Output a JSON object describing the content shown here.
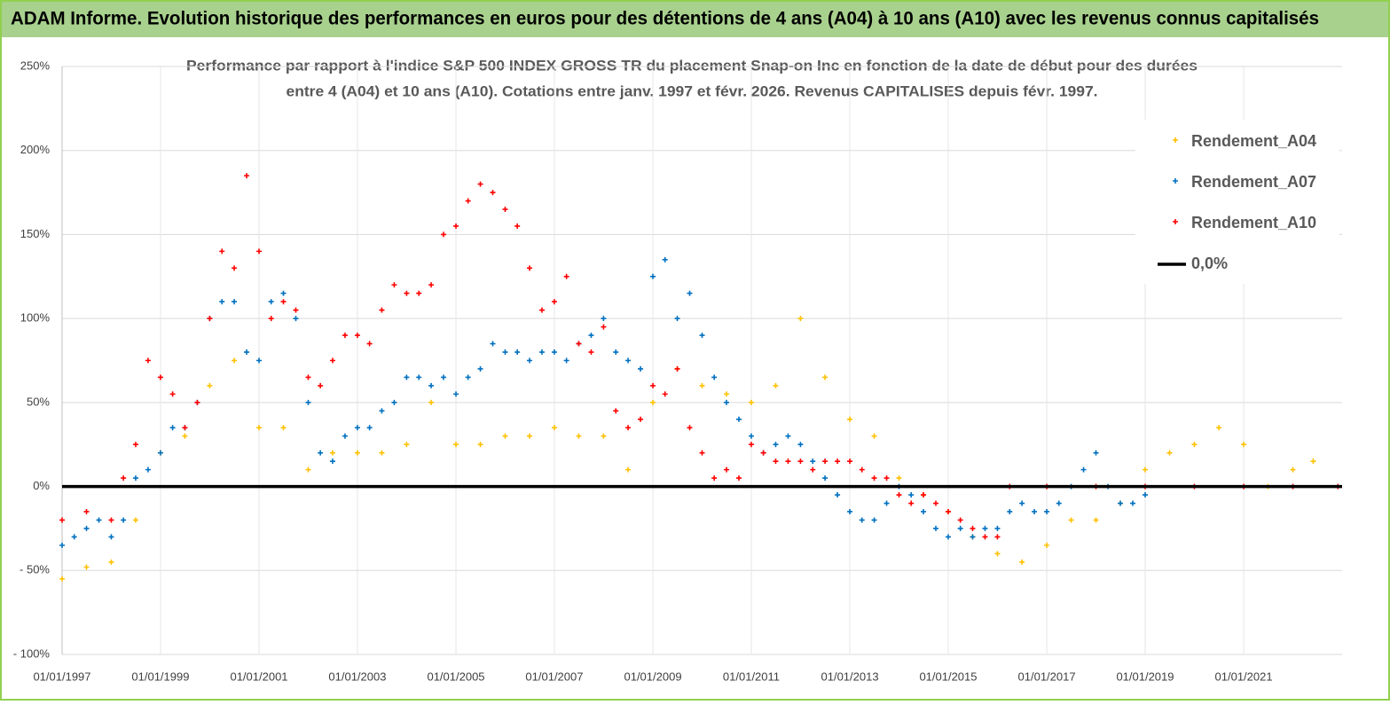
{
  "chart_data": {
    "type": "scatter",
    "title": "ADAM Informe. Evolution historique des performances en euros pour des détentions de 4 ans (A04) à 10 ans (A10) avec les revenus connus capitalisés",
    "subtitle": [
      "Performance par rapport à l'indice S&P 500 INDEX GROSS TR  du placement Snap-on Inc en fonction de la date de début pour des durées",
      "entre 4 (A04) et 10 ans (A10). Cotations entre janv. 1997 et févr. 2026. Revenus CAPITALISES depuis févr. 1997."
    ],
    "xlim": [
      "1997-01-01",
      "2023-01-01"
    ],
    "xticks": [
      {
        "value": "1997-01-01",
        "label": "01/01/1997"
      },
      {
        "value": "1999-01-01",
        "label": "01/01/1999"
      },
      {
        "value": "2001-01-01",
        "label": "01/01/2001"
      },
      {
        "value": "2003-01-01",
        "label": "01/01/2003"
      },
      {
        "value": "2005-01-01",
        "label": "01/01/2005"
      },
      {
        "value": "2007-01-01",
        "label": "01/01/2007"
      },
      {
        "value": "2009-01-01",
        "label": "01/01/2009"
      },
      {
        "value": "2011-01-01",
        "label": "01/01/2011"
      },
      {
        "value": "2013-01-01",
        "label": "01/01/2013"
      },
      {
        "value": "2015-01-01",
        "label": "01/01/2015"
      },
      {
        "value": "2017-01-01",
        "label": "01/01/2017"
      },
      {
        "value": "2019-01-01",
        "label": "01/01/2019"
      },
      {
        "value": "2021-01-01",
        "label": "01/01/2021"
      }
    ],
    "ylim": [
      -100,
      250
    ],
    "yticks": [
      {
        "value": 250,
        "label": "250%"
      },
      {
        "value": 200,
        "label": "200%"
      },
      {
        "value": 150,
        "label": "150%"
      },
      {
        "value": 100,
        "label": "100%"
      },
      {
        "value": 50,
        "label": "50%"
      },
      {
        "value": 0,
        "label": "0%"
      },
      {
        "value": -50,
        "label": "- 50%"
      },
      {
        "value": -100,
        "label": "- 100%"
      }
    ],
    "grid": true,
    "legend": "upper right",
    "series": [
      {
        "name": "Rendement_A04",
        "color": "#ffc000",
        "x": [
          "1997-01-01",
          "1997-07-01",
          "1998-01-01",
          "1998-07-01",
          "1999-01-01",
          "1999-07-01",
          "2000-01-01",
          "2000-07-01",
          "2001-01-01",
          "2001-07-01",
          "2002-01-01",
          "2002-07-01",
          "2003-01-01",
          "2003-07-01",
          "2004-01-01",
          "2004-07-01",
          "2005-01-01",
          "2005-07-01",
          "2006-01-01",
          "2006-07-01",
          "2007-01-01",
          "2007-07-01",
          "2008-01-01",
          "2008-07-01",
          "2009-01-01",
          "2009-07-01",
          "2010-01-01",
          "2010-07-01",
          "2011-01-01",
          "2011-07-01",
          "2012-01-01",
          "2012-07-01",
          "2013-01-01",
          "2013-07-01",
          "2014-01-01",
          "2014-07-01",
          "2015-01-01",
          "2015-07-01",
          "2016-01-01",
          "2016-07-01",
          "2017-01-01",
          "2017-07-01",
          "2018-01-01",
          "2018-07-01",
          "2019-01-01",
          "2019-07-01",
          "2020-01-01",
          "2020-07-01",
          "2021-01-01",
          "2021-07-01",
          "2022-01-01",
          "2022-06-01"
        ],
        "values": [
          -55,
          -48,
          -45,
          -20,
          20,
          30,
          60,
          75,
          35,
          35,
          10,
          20,
          20,
          20,
          25,
          50,
          25,
          25,
          30,
          30,
          35,
          30,
          30,
          10,
          50,
          70,
          60,
          55,
          50,
          60,
          100,
          65,
          40,
          30,
          5,
          -5,
          -15,
          -30,
          -40,
          -45,
          -35,
          -20,
          -20,
          -10,
          10,
          20,
          25,
          35,
          25,
          0,
          10,
          15
        ]
      },
      {
        "name": "Rendement_A07",
        "color": "#0070c0",
        "x": [
          "1997-01-01",
          "1997-04-01",
          "1997-07-01",
          "1997-10-01",
          "1998-01-01",
          "1998-04-01",
          "1998-07-01",
          "1998-10-01",
          "1999-01-01",
          "1999-04-01",
          "1999-07-01",
          "1999-10-01",
          "2000-01-01",
          "2000-04-01",
          "2000-07-01",
          "2000-10-01",
          "2001-01-01",
          "2001-04-01",
          "2001-07-01",
          "2001-10-01",
          "2002-01-01",
          "2002-04-01",
          "2002-07-01",
          "2002-10-01",
          "2003-01-01",
          "2003-04-01",
          "2003-07-01",
          "2003-10-01",
          "2004-01-01",
          "2004-04-01",
          "2004-07-01",
          "2004-10-01",
          "2005-01-01",
          "2005-04-01",
          "2005-07-01",
          "2005-10-01",
          "2006-01-01",
          "2006-04-01",
          "2006-07-01",
          "2006-10-01",
          "2007-01-01",
          "2007-04-01",
          "2007-07-01",
          "2007-10-01",
          "2008-01-01",
          "2008-04-01",
          "2008-07-01",
          "2008-10-01",
          "2009-01-01",
          "2009-04-01",
          "2009-07-01",
          "2009-10-01",
          "2010-01-01",
          "2010-04-01",
          "2010-07-01",
          "2010-10-01",
          "2011-01-01",
          "2011-04-01",
          "2011-07-01",
          "2011-10-01",
          "2012-01-01",
          "2012-04-01",
          "2012-07-01",
          "2012-10-01",
          "2013-01-01",
          "2013-04-01",
          "2013-07-01",
          "2013-10-01",
          "2014-01-01",
          "2014-04-01",
          "2014-07-01",
          "2014-10-01",
          "2015-01-01",
          "2015-04-01",
          "2015-07-01",
          "2015-10-01",
          "2016-01-01",
          "2016-04-01",
          "2016-07-01",
          "2016-10-01",
          "2017-01-01",
          "2017-04-01",
          "2017-07-01",
          "2017-10-01",
          "2018-01-01",
          "2018-04-01",
          "2018-07-01",
          "2018-10-01",
          "2019-01-01"
        ],
        "values": [
          -35,
          -30,
          -25,
          -20,
          -30,
          -20,
          5,
          10,
          20,
          35,
          35,
          50,
          100,
          110,
          110,
          80,
          75,
          110,
          115,
          100,
          50,
          20,
          15,
          30,
          35,
          35,
          45,
          50,
          65,
          65,
          60,
          65,
          55,
          65,
          70,
          85,
          80,
          80,
          75,
          80,
          80,
          75,
          85,
          90,
          100,
          80,
          75,
          70,
          125,
          135,
          100,
          115,
          90,
          65,
          50,
          40,
          30,
          20,
          25,
          30,
          25,
          15,
          5,
          -5,
          -15,
          -20,
          -20,
          -10,
          0,
          -5,
          -15,
          -25,
          -30,
          -25,
          -30,
          -25,
          -25,
          -15,
          -10,
          -15,
          -15,
          -10,
          0,
          10,
          20,
          0,
          -10,
          -10,
          -5
        ]
      },
      {
        "name": "Rendement_A10",
        "color": "#ff0000",
        "x": [
          "1997-01-01",
          "1997-07-01",
          "1998-01-01",
          "1998-04-01",
          "1998-07-01",
          "1998-10-01",
          "1999-01-01",
          "1999-04-01",
          "1999-07-01",
          "1999-10-01",
          "2000-01-01",
          "2000-04-01",
          "2000-07-01",
          "2000-10-01",
          "2001-01-01",
          "2001-04-01",
          "2001-07-01",
          "2001-10-01",
          "2002-01-01",
          "2002-04-01",
          "2002-07-01",
          "2002-10-01",
          "2003-01-01",
          "2003-04-01",
          "2003-07-01",
          "2003-10-01",
          "2004-01-01",
          "2004-04-01",
          "2004-07-01",
          "2004-10-01",
          "2005-01-01",
          "2005-04-01",
          "2005-07-01",
          "2005-10-01",
          "2006-01-01",
          "2006-04-01",
          "2006-07-01",
          "2006-10-01",
          "2007-01-01",
          "2007-04-01",
          "2007-07-01",
          "2007-10-01",
          "2008-01-01",
          "2008-04-01",
          "2008-07-01",
          "2008-10-01",
          "2009-01-01",
          "2009-04-01",
          "2009-07-01",
          "2009-10-01",
          "2010-01-01",
          "2010-04-01",
          "2010-07-01",
          "2010-10-01",
          "2011-01-01",
          "2011-04-01",
          "2011-07-01",
          "2011-10-01",
          "2012-01-01",
          "2012-04-01",
          "2012-07-01",
          "2012-10-01",
          "2013-01-01",
          "2013-04-01",
          "2013-07-01",
          "2013-10-01",
          "2014-01-01",
          "2014-04-01",
          "2014-07-01",
          "2014-10-01",
          "2015-01-01",
          "2015-04-01",
          "2015-07-01",
          "2015-10-01",
          "2016-01-01",
          "2016-04-01",
          "2017-01-01",
          "2018-01-01",
          "2019-01-01",
          "2020-01-01",
          "2021-01-01",
          "2022-01-01",
          "2022-12-01"
        ],
        "values": [
          -20,
          -15,
          -20,
          5,
          25,
          75,
          65,
          55,
          35,
          50,
          100,
          140,
          130,
          185,
          140,
          100,
          110,
          105,
          65,
          60,
          75,
          90,
          90,
          85,
          105,
          120,
          115,
          115,
          120,
          150,
          155,
          170,
          180,
          175,
          165,
          155,
          130,
          105,
          110,
          125,
          85,
          80,
          95,
          45,
          35,
          40,
          60,
          55,
          70,
          35,
          20,
          5,
          10,
          5,
          25,
          20,
          15,
          15,
          15,
          10,
          15,
          15,
          15,
          10,
          5,
          5,
          -5,
          -10,
          -5,
          -10,
          -15,
          -20,
          -25,
          -30,
          -30,
          0,
          0,
          0,
          0,
          0,
          0,
          0,
          0
        ]
      },
      {
        "name": "0,0%",
        "color": "#000000",
        "mode": "line",
        "x": [
          "1997-01-01",
          "2023-01-01"
        ],
        "values": [
          0,
          0
        ]
      }
    ]
  }
}
